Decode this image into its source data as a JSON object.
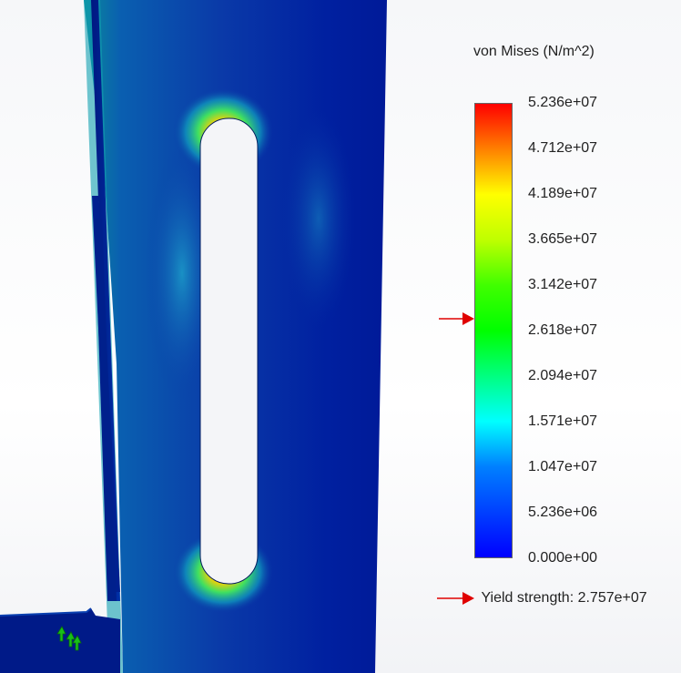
{
  "legend": {
    "title": "von Mises (N/m^2)",
    "ticks": [
      "5.236e+07",
      "4.712e+07",
      "4.189e+07",
      "3.665e+07",
      "3.142e+07",
      "2.618e+07",
      "2.094e+07",
      "1.571e+07",
      "1.047e+07",
      "5.236e+06",
      "0.000e+00"
    ],
    "colors": [
      "#ff0000",
      "#ff8000",
      "#ffff00",
      "#bfff00",
      "#40ff00",
      "#00ff00",
      "#00ff80",
      "#00ffff",
      "#0080ff",
      "#0040ff",
      "#0000ff"
    ],
    "yield_label": "Yield strength: 2.757e+07",
    "yield_value": 27570000,
    "max_value": 52360000,
    "min_value": 0
  },
  "icons": {
    "yield_marker": "red-arrow-icon",
    "load_marker": "green-arrow-icon"
  }
}
